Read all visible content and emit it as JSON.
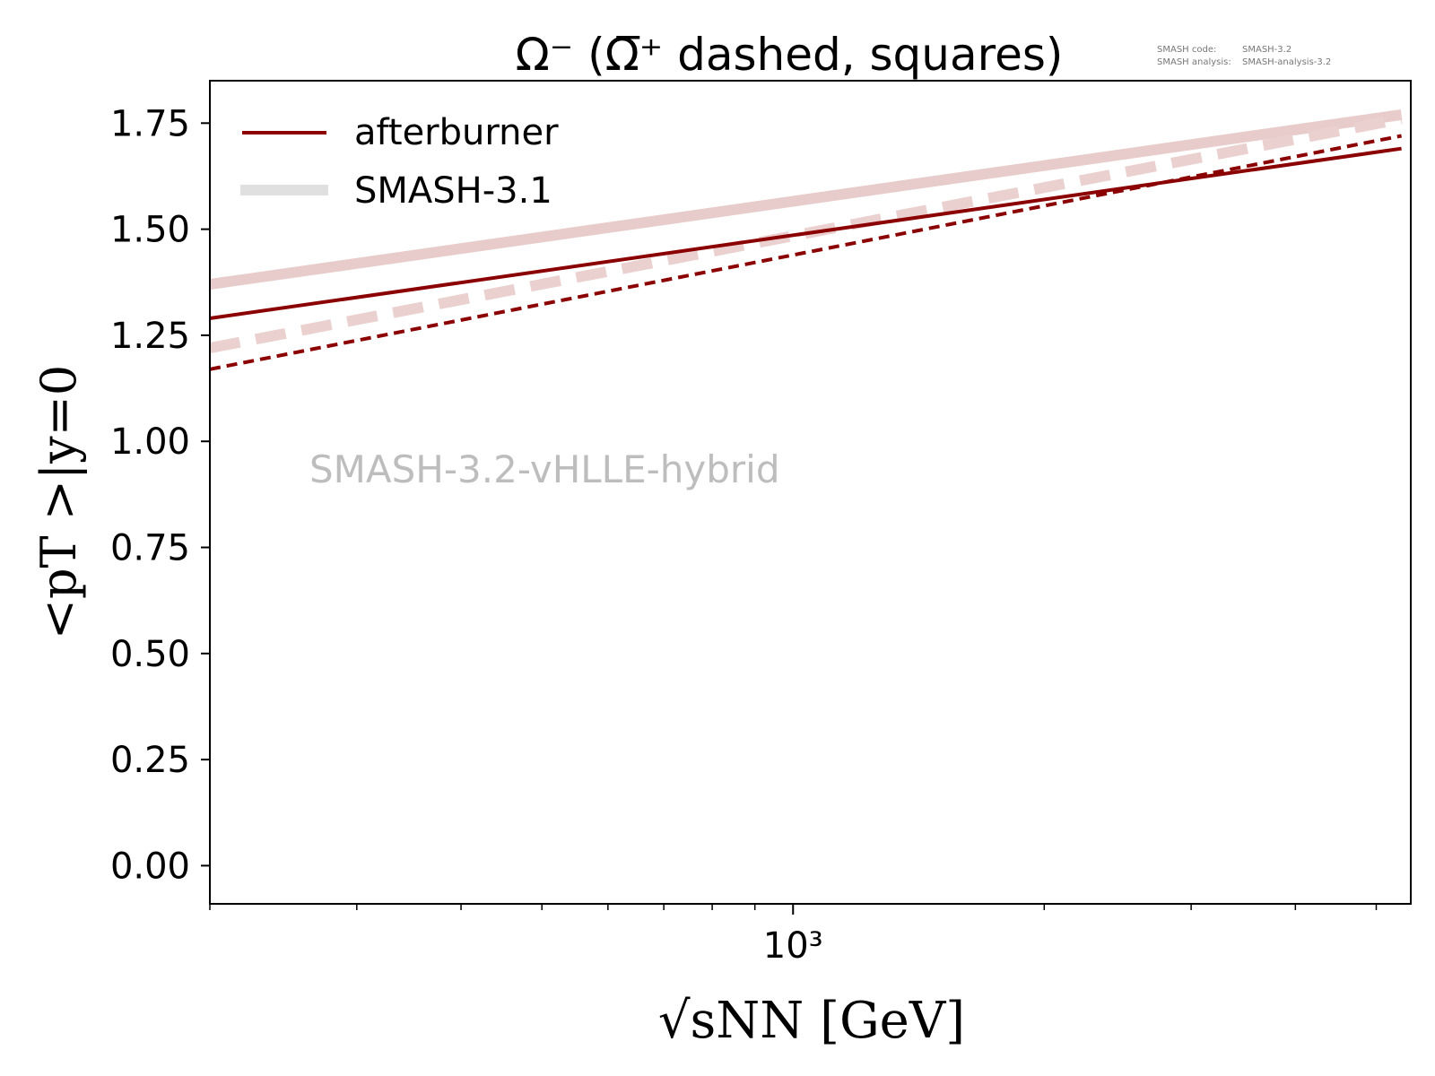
{
  "chart_data": {
    "type": "line",
    "title": "Ω⁻ (Ω̅⁺ dashed, squares)",
    "xlabel": "√sNN [GeV]",
    "ylabel": "<pT >|y=0",
    "xscale": "log",
    "xlim": [
      200,
      5500
    ],
    "ylim": [
      -0.09,
      1.85
    ],
    "x_ticks": [
      {
        "value": 1000,
        "label": "10³"
      }
    ],
    "x_minor_ticks": [
      200,
      300,
      400,
      500,
      600,
      700,
      800,
      900,
      2000,
      3000,
      4000,
      5000
    ],
    "y_ticks": [
      0.0,
      0.25,
      0.5,
      0.75,
      1.0,
      1.25,
      1.5,
      1.75
    ],
    "y_tick_labels": [
      "0.00",
      "0.25",
      "0.50",
      "0.75",
      "1.00",
      "1.25",
      "1.50",
      "1.75"
    ],
    "series": [
      {
        "name": "afterburner",
        "particle": "Ω⁻",
        "style": "solid",
        "color": "#8b0000",
        "x": [
          200,
          5360
        ],
        "y": [
          1.29,
          1.69
        ]
      },
      {
        "particle": "Ω̅⁺",
        "style": "dashed",
        "color": "#8b0000",
        "x": [
          200,
          5360
        ],
        "y": [
          1.17,
          1.72
        ]
      },
      {
        "name": "SMASH-3.1",
        "particle": "Ω⁻",
        "style": "solid",
        "color": "#e8cccc",
        "x": [
          200,
          5360
        ],
        "y": [
          1.37,
          1.77
        ]
      },
      {
        "particle": "Ω̅⁺",
        "style": "dashed",
        "color": "#ebd0d0",
        "x": [
          200,
          5360
        ],
        "y": [
          1.22,
          1.76
        ]
      }
    ],
    "legend": {
      "position": "top-left",
      "entries": [
        {
          "label": "afterburner",
          "color": "#8b0000"
        },
        {
          "label": "SMASH-3.1",
          "color": "#e0e0e0"
        }
      ]
    },
    "watermark": "SMASH-3.2-vHLLE-hybrid",
    "version_info": {
      "code_label": "SMASH code:",
      "code_value": "SMASH-3.2",
      "analysis_label": "SMASH analysis:",
      "analysis_value": "SMASH-analysis-3.2"
    },
    "grid": false
  }
}
